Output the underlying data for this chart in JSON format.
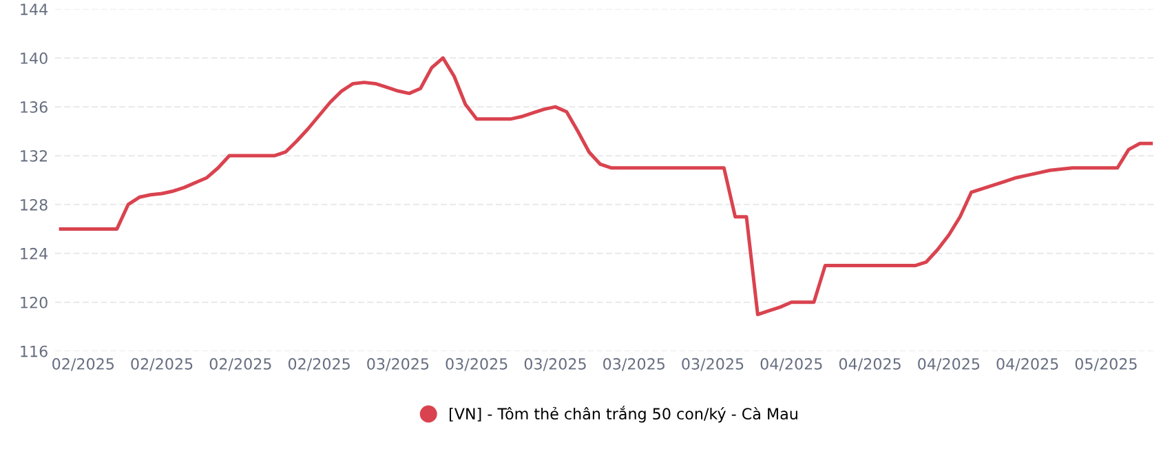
{
  "chart_data": {
    "type": "line",
    "categories": [
      null,
      null,
      "02/2025",
      null,
      null,
      null,
      null,
      null,
      null,
      "02/2025",
      null,
      null,
      null,
      null,
      null,
      null,
      "02/2025",
      null,
      null,
      null,
      null,
      null,
      null,
      "02/2025",
      null,
      null,
      null,
      null,
      null,
      null,
      "03/2025",
      null,
      null,
      null,
      null,
      null,
      null,
      "03/2025",
      null,
      null,
      null,
      null,
      null,
      null,
      "03/2025",
      null,
      null,
      null,
      null,
      null,
      null,
      "03/2025",
      null,
      null,
      null,
      null,
      null,
      null,
      "03/2025",
      null,
      null,
      null,
      null,
      null,
      null,
      "04/2025",
      null,
      null,
      null,
      null,
      null,
      null,
      "04/2025",
      null,
      null,
      null,
      null,
      null,
      null,
      "04/2025",
      null,
      null,
      null,
      null,
      null,
      null,
      "04/2025",
      null,
      null,
      null,
      null,
      null,
      null,
      "05/2025",
      null,
      null,
      null,
      null
    ],
    "series": [
      {
        "name": "[VN] - Tôm thẻ chân trắng 50 con/ký - Cà Mau",
        "color": "#d9434f",
        "values": [
          126,
          126,
          126,
          126,
          126,
          126,
          128,
          128.6,
          128.8,
          128.9,
          129.1,
          129.4,
          129.8,
          130.2,
          131,
          132,
          132,
          132,
          132,
          132,
          132.3,
          133.2,
          134.2,
          135.3,
          136.4,
          137.3,
          137.9,
          138,
          137.9,
          137.6,
          137.3,
          137.1,
          137.5,
          139.2,
          140,
          138.5,
          136.2,
          135,
          135,
          135,
          135,
          135.2,
          135.5,
          135.8,
          136,
          135.6,
          134,
          132.3,
          131.3,
          131,
          131,
          131,
          131,
          131,
          131,
          131,
          131,
          131,
          131,
          131,
          127,
          127,
          119,
          119.3,
          119.6,
          120,
          120,
          120,
          123,
          123,
          123,
          123,
          123,
          123,
          123,
          123,
          123,
          123.3,
          124.3,
          125.5,
          127,
          129,
          129.3,
          129.6,
          129.9,
          130.2,
          130.4,
          130.6,
          130.8,
          130.9,
          131,
          131,
          131,
          131,
          131,
          132.5,
          133,
          133
        ]
      }
    ],
    "ylim": [
      116,
      144
    ],
    "yticks": [
      116,
      120,
      124,
      128,
      132,
      136,
      140,
      144
    ],
    "grid": "y",
    "legend": "bottom",
    "marker": "none",
    "line_style": "solid"
  }
}
